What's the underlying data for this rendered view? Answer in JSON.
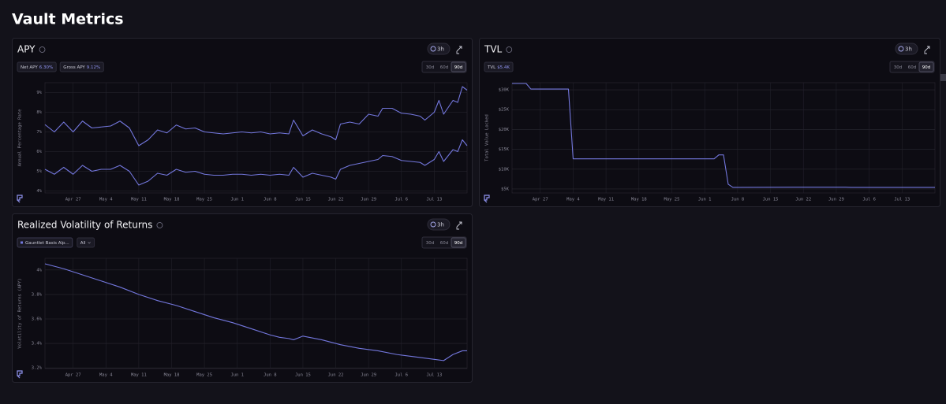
{
  "title": "Vault Metrics",
  "panels": [
    {
      "title": "APY",
      "refresh": "3h",
      "chips": [
        {
          "label": "Net APY",
          "value": "6.30%"
        },
        {
          "label": "Gross APY",
          "value": "9.12%"
        }
      ],
      "ranges": [
        "30d",
        "60d",
        "90d"
      ],
      "active_range": "90d",
      "chart": {
        "type": "line",
        "ylabel": "Annual Percentage Rate",
        "x": [
          "Apr 21",
          "Apr 23",
          "Apr 25",
          "Apr 27",
          "Apr 29",
          "May 1",
          "May 3",
          "May 5",
          "May 7",
          "May 9",
          "May 11",
          "May 13",
          "May 15",
          "May 17",
          "May 19",
          "May 21",
          "May 23",
          "May 25",
          "May 27",
          "May 29",
          "May 31",
          "Jun 2",
          "Jun 4",
          "Jun 6",
          "Jun 8",
          "Jun 10",
          "Jun 12",
          "Jun 13",
          "Jun 15",
          "Jun 17",
          "Jun 19",
          "Jun 21",
          "Jun 22",
          "Jun 23",
          "Jun 25",
          "Jun 27",
          "Jun 29",
          "Jul 1",
          "Jul 2",
          "Jul 4",
          "Jul 6",
          "Jul 8",
          "Jul 10",
          "Jul 11",
          "Jul 13",
          "Jul 14",
          "Jul 15",
          "Jul 17",
          "Jul 18",
          "Jul 19",
          "Jul 20"
        ],
        "xlim": [
          "Apr 21",
          "Jul 20"
        ],
        "xticks": [
          "Apr 27",
          "May 4",
          "May 11",
          "May 18",
          "May 25",
          "Jun 1",
          "Jun 8",
          "Jun 15",
          "Jun 22",
          "Jun 29",
          "Jul 6",
          "Jul 13"
        ],
        "ylim": [
          3.9,
          9.5
        ],
        "yticks": [
          {
            "value": 4,
            "label": "4%"
          },
          {
            "value": 5,
            "label": "5%"
          },
          {
            "value": 6,
            "label": "6%"
          },
          {
            "value": 7,
            "label": "7%"
          },
          {
            "value": 8,
            "label": "8%"
          },
          {
            "value": 9,
            "label": "9%"
          }
        ],
        "series": [
          {
            "name": "Gross APY",
            "color": "#7377dd",
            "values": [
              7.37,
              7.0,
              7.5,
              7.0,
              7.55,
              7.2,
              7.25,
              7.3,
              7.55,
              7.2,
              6.3,
              6.6,
              7.1,
              6.95,
              7.35,
              7.15,
              7.2,
              7.0,
              6.95,
              6.9,
              6.95,
              7.0,
              6.95,
              7.0,
              6.9,
              6.95,
              6.9,
              7.6,
              6.8,
              7.1,
              6.9,
              6.75,
              6.6,
              7.4,
              7.5,
              7.4,
              7.9,
              7.8,
              8.2,
              8.2,
              7.95,
              7.9,
              7.8,
              7.6,
              8.0,
              8.6,
              7.9,
              8.6,
              8.5,
              9.3,
              9.12
            ]
          },
          {
            "name": "Net APY",
            "color": "#7377dd",
            "values": [
              5.1,
              4.85,
              5.2,
              4.85,
              5.3,
              5.0,
              5.1,
              5.1,
              5.3,
              5.0,
              4.3,
              4.5,
              4.9,
              4.8,
              5.1,
              4.95,
              5.0,
              4.85,
              4.8,
              4.8,
              4.85,
              4.85,
              4.8,
              4.85,
              4.8,
              4.85,
              4.8,
              5.2,
              4.7,
              4.9,
              4.8,
              4.7,
              4.6,
              5.1,
              5.3,
              5.4,
              5.5,
              5.6,
              5.8,
              5.75,
              5.55,
              5.5,
              5.45,
              5.3,
              5.6,
              6.0,
              5.5,
              6.1,
              6.0,
              6.6,
              6.3
            ]
          }
        ]
      }
    },
    {
      "title": "TVL",
      "refresh": "3h",
      "chips": [
        {
          "label": "TVL",
          "value": "$5.4K"
        }
      ],
      "ranges": [
        "30d",
        "60d",
        "90d"
      ],
      "active_range": "90d",
      "chart": {
        "type": "line",
        "ylabel": "Total Value Locked",
        "x": [
          "Apr 21",
          "Apr 24",
          "Apr 25",
          "May 3",
          "May 4",
          "Jun 3",
          "Jun 4",
          "Jun 5",
          "Jun 6",
          "Jun 7",
          "Jun 20",
          "Jul 1",
          "Jul 2",
          "Jul 20"
        ],
        "xlim": [
          "Apr 21",
          "Jul 20"
        ],
        "xticks": [
          "Apr 27",
          "May 4",
          "May 11",
          "May 18",
          "May 25",
          "Jun 1",
          "Jun 8",
          "Jun 15",
          "Jun 22",
          "Jun 29",
          "Jul 6",
          "Jul 13"
        ],
        "ylim": [
          4000,
          31800
        ],
        "yticks": [
          {
            "value": 5000,
            "label": "$5K"
          },
          {
            "value": 10000,
            "label": "$10K"
          },
          {
            "value": 15000,
            "label": "$15K"
          },
          {
            "value": 20000,
            "label": "$20K"
          },
          {
            "value": 25000,
            "label": "$25K"
          },
          {
            "value": 30000,
            "label": "$30K"
          }
        ],
        "series": [
          {
            "name": "TVL",
            "color": "#7377dd",
            "values": [
              31600,
              31600,
              30200,
              30200,
              12600,
              12600,
              13600,
              13600,
              6200,
              5400,
              5450,
              5450,
              5400,
              5400
            ]
          }
        ]
      }
    },
    {
      "title": "Realized Volatility of Returns",
      "refresh": "3h",
      "filter": "All",
      "ranges": [
        "30d",
        "60d",
        "90d"
      ],
      "active_range": "90d",
      "chart": {
        "type": "line",
        "ylabel": "Volatility of Returns (APY)",
        "x": [
          "Apr 21",
          "Apr 25",
          "Apr 29",
          "May 3",
          "May 7",
          "May 11",
          "May 15",
          "May 19",
          "May 23",
          "May 27",
          "May 31",
          "Jun 4",
          "Jun 8",
          "Jun 10",
          "Jun 12",
          "Jun 13",
          "Jun 15",
          "Jun 19",
          "Jun 23",
          "Jun 27",
          "Jul 1",
          "Jul 5",
          "Jul 9",
          "Jul 13",
          "Jul 15",
          "Jul 17",
          "Jul 19",
          "Jul 20"
        ],
        "xlim": [
          "Apr 21",
          "Jul 20"
        ],
        "xticks": [
          "Apr 27",
          "May 4",
          "May 11",
          "May 18",
          "May 25",
          "Jun 1",
          "Jun 8",
          "Jun 15",
          "Jun 22",
          "Jun 29",
          "Jul 6",
          "Jul 13"
        ],
        "ylim": [
          3.195,
          4.095
        ],
        "yticks": [
          {
            "value": 3.2,
            "label": "3.2%"
          },
          {
            "value": 3.4,
            "label": "3.4%"
          },
          {
            "value": 3.6,
            "label": "3.6%"
          },
          {
            "value": 3.8,
            "label": "3.8%"
          },
          {
            "value": 4,
            "label": "4%"
          }
        ],
        "series": [
          {
            "name": "Gauntlet Basis Alp...",
            "color": "#7377dd",
            "values": [
              4.05,
              4.01,
              3.96,
              3.91,
              3.86,
              3.8,
              3.75,
              3.71,
              3.66,
              3.61,
              3.57,
              3.52,
              3.47,
              3.45,
              3.44,
              3.43,
              3.46,
              3.43,
              3.39,
              3.36,
              3.34,
              3.31,
              3.29,
              3.27,
              3.26,
              3.31,
              3.34,
              3.34
            ]
          }
        ]
      }
    }
  ]
}
